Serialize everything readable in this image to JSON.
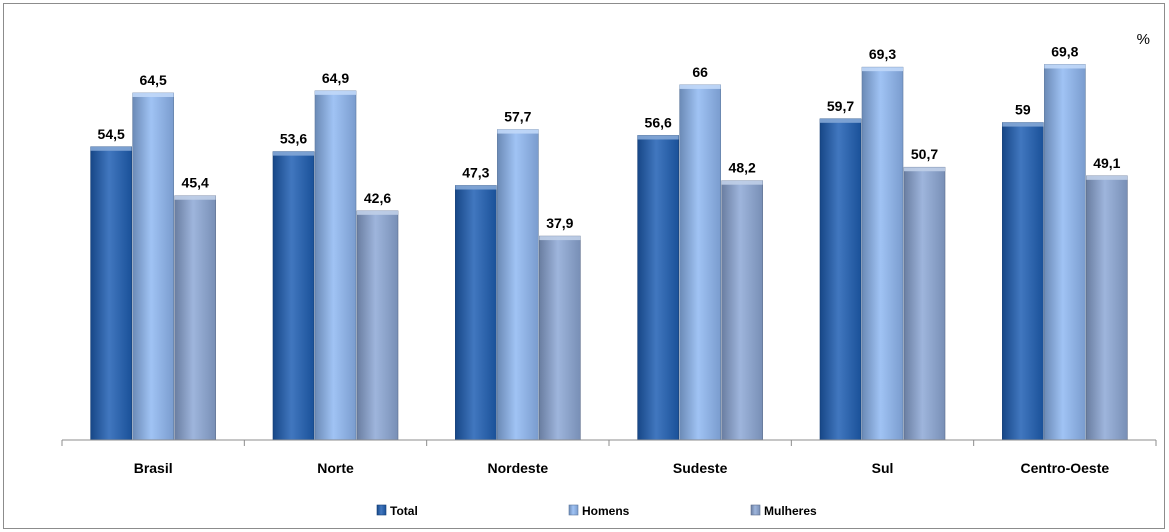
{
  "chart_data": {
    "type": "bar",
    "unit": "%",
    "categories": [
      "Brasil",
      "Norte",
      "Nordeste",
      "Sudeste",
      "Sul",
      "Centro-Oeste"
    ],
    "series": [
      {
        "name": "Total",
        "values": [
          54.5,
          53.6,
          47.3,
          56.6,
          59.7,
          59
        ],
        "color": "#1f5fb4"
      },
      {
        "name": "Homens",
        "values": [
          64.5,
          64.9,
          57.7,
          66,
          69.3,
          69.8
        ],
        "color": "#8fb8f2"
      },
      {
        "name": "Mulheres",
        "values": [
          45.4,
          42.6,
          37.9,
          48.2,
          50.7,
          49.1
        ],
        "color": "#8da8d6"
      }
    ],
    "value_labels": [
      [
        "54,5",
        "53,6",
        "47,3",
        "56,6",
        "59,7",
        "59"
      ],
      [
        "64,5",
        "64,9",
        "57,7",
        "66",
        "69,3",
        "69,8"
      ],
      [
        "45,4",
        "42,6",
        "37,9",
        "48,2",
        "50,7",
        "49,1"
      ]
    ],
    "ylim": [
      0,
      80
    ],
    "grid": false,
    "legend_position": "bottom"
  }
}
